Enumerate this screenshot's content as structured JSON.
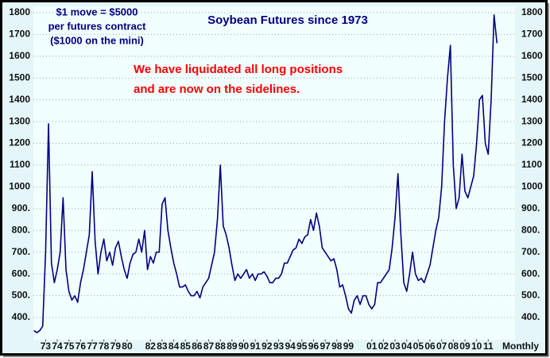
{
  "chart_data": {
    "type": "line",
    "title": "Soybean Futures since 1973",
    "annotations": [
      "$1 move = $5000",
      "per futures contract",
      "($1000 on the mini)",
      "We have liquidated all long positions",
      "and are now on the sidelines."
    ],
    "x_label": "Monthly",
    "color": "#000080",
    "grid": true,
    "x": [
      1972,
      1972.25,
      1972.5,
      1972.75,
      1973,
      1973.25,
      1973.5,
      1973.75,
      1974,
      1974.25,
      1974.5,
      1974.75,
      1975,
      1975.25,
      1975.5,
      1975.75,
      1976,
      1976.25,
      1976.5,
      1976.75,
      1977,
      1977.25,
      1977.5,
      1977.75,
      1978,
      1978.25,
      1978.5,
      1978.75,
      1979,
      1979.25,
      1979.5,
      1979.75,
      1980,
      1980.25,
      1980.5,
      1980.75,
      1981,
      1981.25,
      1981.5,
      1981.75,
      1982,
      1982.25,
      1982.5,
      1982.75,
      1983,
      1983.25,
      1983.5,
      1983.75,
      1984,
      1984.25,
      1984.5,
      1984.75,
      1985,
      1985.25,
      1985.5,
      1985.75,
      1986,
      1986.25,
      1986.5,
      1986.75,
      1987,
      1987.25,
      1987.5,
      1987.75,
      1988,
      1988.25,
      1988.5,
      1988.75,
      1989,
      1989.25,
      1989.5,
      1989.75,
      1990,
      1990.25,
      1990.5,
      1990.75,
      1991,
      1991.25,
      1991.5,
      1991.75,
      1992,
      1992.25,
      1992.5,
      1992.75,
      1993,
      1993.25,
      1993.5,
      1993.75,
      1994,
      1994.25,
      1994.5,
      1994.75,
      1995,
      1995.25,
      1995.5,
      1995.75,
      1996,
      1996.25,
      1996.5,
      1996.75,
      1997,
      1997.25,
      1997.5,
      1997.75,
      1998,
      1998.25,
      1998.5,
      1998.75,
      1999,
      1999.25,
      1999.5,
      1999.75,
      2000,
      2000.25,
      2000.5,
      2000.75,
      2001,
      2001.25,
      2001.5,
      2001.75,
      2002,
      2002.25,
      2002.5,
      2002.75,
      2003,
      2003.25,
      2003.5,
      2003.75,
      2004,
      2004.25,
      2004.5,
      2004.75,
      2005,
      2005.25,
      2005.5,
      2005.75,
      2006,
      2006.25,
      2006.5,
      2006.75,
      2007,
      2007.25,
      2007.5,
      2007.75,
      2008,
      2008.25,
      2008.5,
      2008.75,
      2009,
      2009.25,
      2009.5,
      2009.75,
      2010,
      2010.25,
      2010.5,
      2010.75,
      2011,
      2011.25,
      2011.5,
      2011.75
    ],
    "values": [
      340,
      330,
      340,
      360,
      700,
      1290,
      650,
      560,
      620,
      700,
      950,
      620,
      520,
      480,
      500,
      470,
      560,
      620,
      700,
      780,
      1070,
      750,
      600,
      700,
      760,
      660,
      700,
      640,
      720,
      750,
      680,
      620,
      580,
      650,
      690,
      700,
      760,
      700,
      800,
      620,
      680,
      650,
      700,
      700,
      920,
      950,
      800,
      720,
      650,
      600,
      540,
      540,
      550,
      520,
      500,
      500,
      520,
      490,
      540,
      560,
      580,
      640,
      700,
      850,
      1100,
      820,
      780,
      720,
      640,
      570,
      600,
      580,
      600,
      620,
      580,
      600,
      570,
      600,
      600,
      610,
      590,
      560,
      560,
      580,
      580,
      600,
      650,
      650,
      680,
      710,
      720,
      760,
      740,
      770,
      780,
      850,
      800,
      880,
      820,
      720,
      700,
      680,
      660,
      670,
      620,
      540,
      550,
      500,
      440,
      420,
      480,
      500,
      460,
      500,
      500,
      460,
      440,
      460,
      560,
      560,
      580,
      600,
      620,
      720,
      860,
      1060,
      780,
      560,
      520,
      600,
      700,
      600,
      570,
      580,
      560,
      600,
      640,
      720,
      800,
      860,
      1000,
      1300,
      1500,
      1650,
      1100,
      900,
      950,
      1150,
      980,
      950,
      1000,
      1050,
      1200,
      1400,
      1420,
      1200,
      1150,
      1400,
      1790,
      1660
    ],
    "xlim": [
      1971.95,
      2013.3
    ],
    "xticks": [
      {
        "value": 1973,
        "label": "73"
      },
      {
        "value": 1974,
        "label": "74"
      },
      {
        "value": 1975,
        "label": "75"
      },
      {
        "value": 1976,
        "label": "76"
      },
      {
        "value": 1977,
        "label": "77"
      },
      {
        "value": 1978,
        "label": "78"
      },
      {
        "value": 1979,
        "label": "79"
      },
      {
        "value": 1980,
        "label": "80"
      },
      {
        "value": 1982,
        "label": "82"
      },
      {
        "value": 1983,
        "label": "83"
      },
      {
        "value": 1984,
        "label": "84"
      },
      {
        "value": 1985,
        "label": "85"
      },
      {
        "value": 1986,
        "label": "86"
      },
      {
        "value": 1987,
        "label": "87"
      },
      {
        "value": 1988,
        "label": "88"
      },
      {
        "value": 1989,
        "label": "89"
      },
      {
        "value": 1990,
        "label": "90"
      },
      {
        "value": 1991,
        "label": "91"
      },
      {
        "value": 1992,
        "label": "92"
      },
      {
        "value": 1993,
        "label": "93"
      },
      {
        "value": 1994,
        "label": "94"
      },
      {
        "value": 1995,
        "label": "95"
      },
      {
        "value": 1996,
        "label": "96"
      },
      {
        "value": 1997,
        "label": "97"
      },
      {
        "value": 1998,
        "label": "98"
      },
      {
        "value": 1999,
        "label": "99"
      },
      {
        "value": 2001,
        "label": "01"
      },
      {
        "value": 2002,
        "label": "02"
      },
      {
        "value": 2003,
        "label": "03"
      },
      {
        "value": 2004,
        "label": "04"
      },
      {
        "value": 2005,
        "label": "05"
      },
      {
        "value": 2006,
        "label": "06"
      },
      {
        "value": 2007,
        "label": "07"
      },
      {
        "value": 2008,
        "label": "08"
      },
      {
        "value": 2009,
        "label": "09"
      },
      {
        "value": 2010,
        "label": "10"
      },
      {
        "value": 2011,
        "label": "11"
      }
    ],
    "ylim": [
      300,
      1800
    ],
    "yticks": [
      {
        "value": 400,
        "label": "400."
      },
      {
        "value": 500,
        "label": "500."
      },
      {
        "value": 600,
        "label": "600."
      },
      {
        "value": 700,
        "label": "700."
      },
      {
        "value": 800,
        "label": "800."
      },
      {
        "value": 900,
        "label": "900."
      },
      1000,
      1100,
      1200,
      1300,
      1400,
      1500,
      1600,
      1700,
      1800
    ]
  }
}
